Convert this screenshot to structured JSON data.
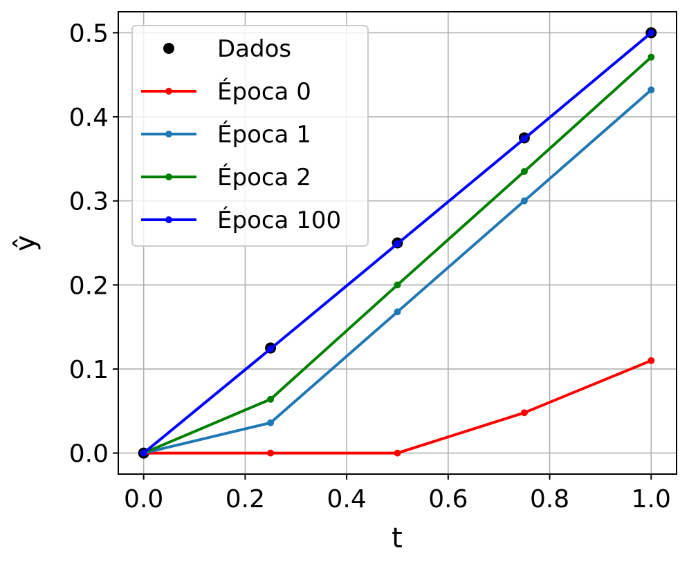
{
  "chart_data": {
    "type": "line",
    "title": "",
    "xlabel": "t",
    "ylabel": "ŷ",
    "xlim": [
      -0.05,
      1.05
    ],
    "ylim": [
      -0.025,
      0.525
    ],
    "x_ticks": [
      0.0,
      0.2,
      0.4,
      0.6,
      0.8,
      1.0
    ],
    "x_tick_labels": [
      "0.0",
      "0.2",
      "0.4",
      "0.6",
      "0.8",
      "1.0"
    ],
    "y_ticks": [
      0.0,
      0.1,
      0.2,
      0.3,
      0.4,
      0.5
    ],
    "y_tick_labels": [
      "0.0",
      "0.1",
      "0.2",
      "0.3",
      "0.4",
      "0.5"
    ],
    "grid": true,
    "legend_position": "top-left",
    "x": [
      0.0,
      0.25,
      0.5,
      0.75,
      1.0
    ],
    "series": [
      {
        "name": "Dados",
        "style": "points",
        "color": "#000000",
        "values": [
          0.0,
          0.125,
          0.25,
          0.375,
          0.5
        ]
      },
      {
        "name": "Época 0",
        "style": "line-markers",
        "color": "#ff0000",
        "values": [
          0.0,
          0.0,
          0.0,
          0.048,
          0.11
        ]
      },
      {
        "name": "Época 1",
        "style": "line-markers",
        "color": "#1f77b4",
        "values": [
          0.0,
          0.036,
          0.168,
          0.3,
          0.432
        ]
      },
      {
        "name": "Época 2",
        "style": "line-markers",
        "color": "#008000",
        "values": [
          0.0,
          0.064,
          0.2,
          0.335,
          0.471
        ]
      },
      {
        "name": "Época 100",
        "style": "line-markers",
        "color": "#0000ff",
        "values": [
          0.0,
          0.124,
          0.249,
          0.374,
          0.5
        ]
      }
    ]
  }
}
